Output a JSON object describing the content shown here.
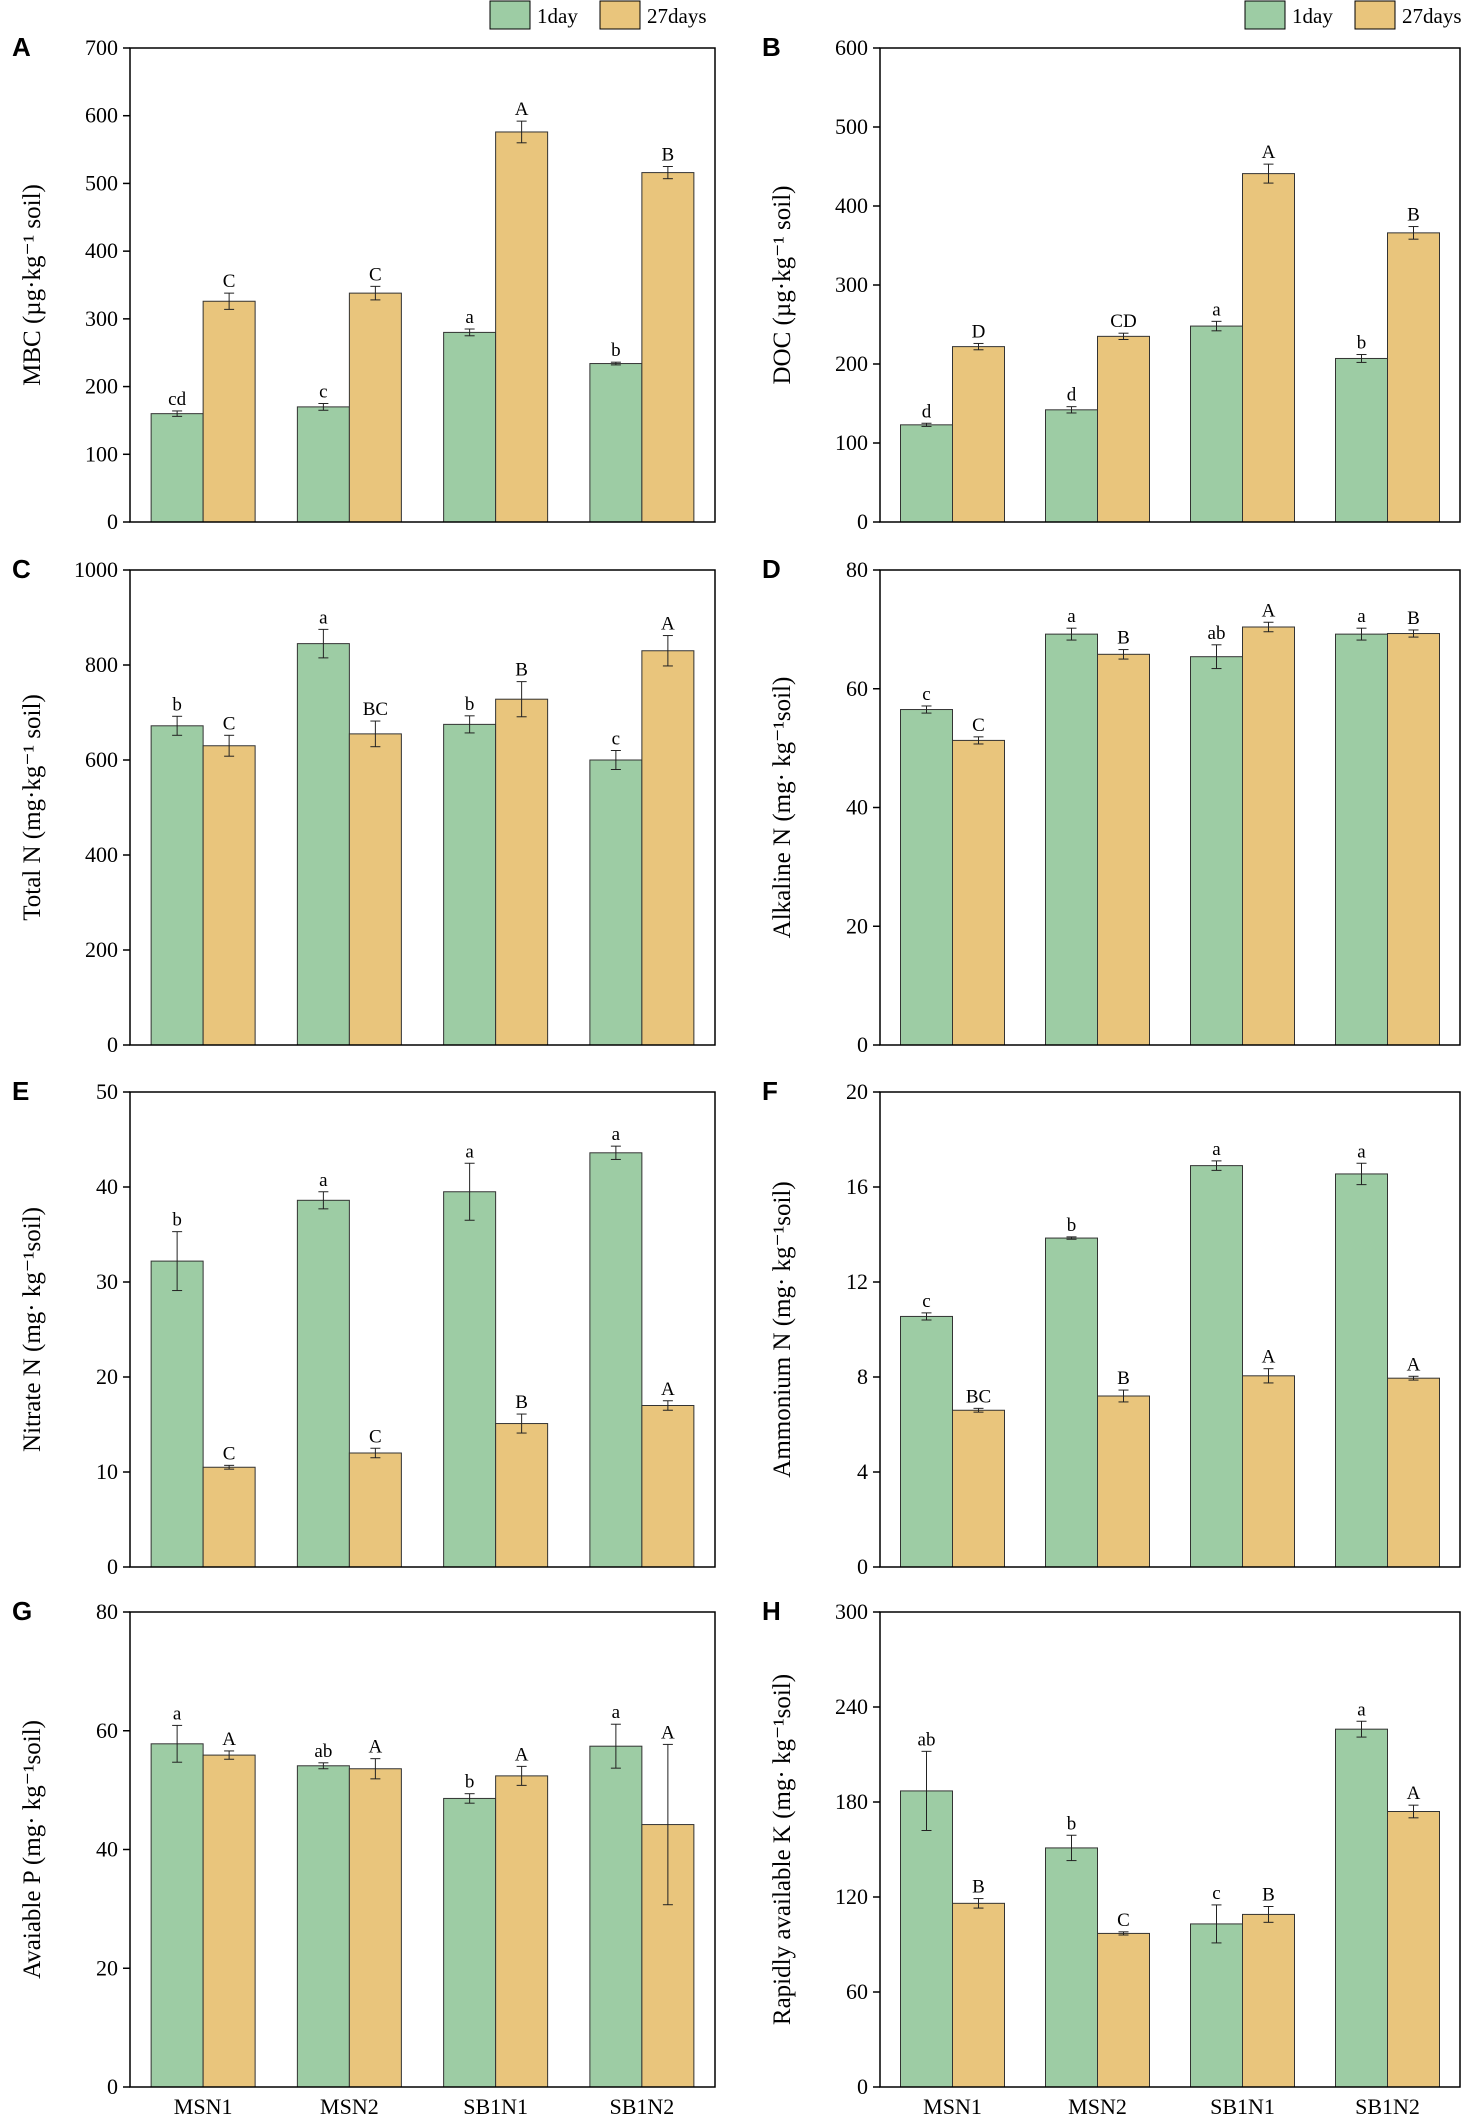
{
  "legend": {
    "series": [
      "1day",
      "27days"
    ],
    "colors": [
      "#9dcca4",
      "#e9c57c"
    ],
    "placement": "top-right"
  },
  "chart_data": [
    {
      "panel": "A",
      "type": "bar",
      "categories": [
        "MSN1",
        "MSN2",
        "SB1N1",
        "SB1N2"
      ],
      "ylabel": "MBC (µg·kg⁻¹ soil)",
      "ylim": [
        0,
        700
      ],
      "yticks": [
        0,
        100,
        200,
        300,
        400,
        500,
        600,
        700
      ],
      "series": [
        {
          "name": "1day",
          "values": [
            160,
            170,
            280,
            234
          ],
          "errors": [
            4,
            5,
            5,
            2
          ],
          "labels": [
            "cd",
            "c",
            "a",
            "b"
          ]
        },
        {
          "name": "27days",
          "values": [
            326,
            338,
            576,
            516
          ],
          "errors": [
            12,
            10,
            16,
            9
          ],
          "labels": [
            "C",
            "C",
            "A",
            "B"
          ]
        }
      ]
    },
    {
      "panel": "B",
      "type": "bar",
      "categories": [
        "MSN1",
        "MSN2",
        "SB1N1",
        "SB1N2"
      ],
      "ylabel": "DOC (µg·kg⁻¹ soil)",
      "ylim": [
        0,
        600
      ],
      "yticks": [
        0,
        100,
        200,
        300,
        400,
        500,
        600
      ],
      "series": [
        {
          "name": "1day",
          "values": [
            123,
            142,
            248,
            207
          ],
          "errors": [
            2,
            4,
            6,
            5
          ],
          "labels": [
            "d",
            "d",
            "a",
            "b"
          ]
        },
        {
          "name": "27days",
          "values": [
            222,
            235,
            441,
            366
          ],
          "errors": [
            4,
            4,
            12,
            8
          ],
          "labels": [
            "D",
            "CD",
            "A",
            "B"
          ]
        }
      ]
    },
    {
      "panel": "C",
      "type": "bar",
      "categories": [
        "MSN1",
        "MSN2",
        "SB1N1",
        "SB1N2"
      ],
      "ylabel": "Total N (mg·kg⁻¹ soil)",
      "ylim": [
        0,
        1000
      ],
      "yticks": [
        0,
        200,
        400,
        600,
        800,
        1000
      ],
      "series": [
        {
          "name": "1day",
          "values": [
            672,
            845,
            675,
            600
          ],
          "errors": [
            20,
            30,
            18,
            20
          ],
          "labels": [
            "b",
            "a",
            "b",
            "c"
          ]
        },
        {
          "name": "27days",
          "values": [
            630,
            655,
            728,
            830
          ],
          "errors": [
            22,
            27,
            37,
            32
          ],
          "labels": [
            "C",
            "BC",
            "B",
            "A"
          ]
        }
      ]
    },
    {
      "panel": "D",
      "type": "bar",
      "categories": [
        "MSN1",
        "MSN2",
        "SB1N1",
        "SB1N2"
      ],
      "ylabel": "Alkaline N (mg· kg⁻¹soil)",
      "ylim": [
        0,
        80
      ],
      "yticks": [
        0,
        20,
        40,
        60,
        80
      ],
      "series": [
        {
          "name": "1day",
          "values": [
            56.5,
            69.2,
            65.4,
            69.2
          ],
          "errors": [
            0.6,
            1.0,
            2.0,
            1.0
          ],
          "labels": [
            "c",
            "a",
            "ab",
            "a"
          ]
        },
        {
          "name": "27days",
          "values": [
            51.3,
            65.8,
            70.4,
            69.3
          ],
          "errors": [
            0.6,
            0.8,
            0.8,
            0.6
          ],
          "labels": [
            "C",
            "B",
            "A",
            "B"
          ]
        }
      ]
    },
    {
      "panel": "E",
      "type": "bar",
      "categories": [
        "MSN1",
        "MSN2",
        "SB1N1",
        "SB1N2"
      ],
      "ylabel": "Nitrate N (mg· kg⁻¹soil)",
      "ylim": [
        0,
        50
      ],
      "yticks": [
        0,
        10,
        20,
        30,
        40,
        50
      ],
      "series": [
        {
          "name": "1day",
          "values": [
            32.2,
            38.6,
            39.5,
            43.6
          ],
          "errors": [
            3.1,
            0.9,
            3.0,
            0.7
          ],
          "labels": [
            "b",
            "a",
            "a",
            "a"
          ]
        },
        {
          "name": "27days",
          "values": [
            10.5,
            12.0,
            15.1,
            17.0
          ],
          "errors": [
            0.2,
            0.5,
            1.0,
            0.5
          ],
          "labels": [
            "C",
            "C",
            "B",
            "A"
          ]
        }
      ]
    },
    {
      "panel": "F",
      "type": "bar",
      "categories": [
        "MSN1",
        "MSN2",
        "SB1N1",
        "SB1N2"
      ],
      "ylabel": "Ammonium N (mg· kg⁻¹soil)",
      "ylim": [
        0,
        20
      ],
      "yticks": [
        0,
        4,
        8,
        12,
        16,
        20
      ],
      "series": [
        {
          "name": "1day",
          "values": [
            10.55,
            13.85,
            16.9,
            16.55
          ],
          "errors": [
            0.15,
            0.05,
            0.2,
            0.45
          ],
          "labels": [
            "c",
            "b",
            "a",
            "a"
          ]
        },
        {
          "name": "27days",
          "values": [
            6.6,
            7.2,
            8.05,
            7.95
          ],
          "errors": [
            0.08,
            0.25,
            0.3,
            0.08
          ],
          "labels": [
            "BC",
            "B",
            "A",
            "A"
          ]
        }
      ]
    },
    {
      "panel": "G",
      "type": "bar",
      "categories": [
        "MSN1",
        "MSN2",
        "SB1N1",
        "SB1N2"
      ],
      "ylabel": "Avaiable P  (mg· kg⁻¹soil)",
      "ylim": [
        0,
        80
      ],
      "yticks": [
        0,
        20,
        40,
        60,
        80
      ],
      "series": [
        {
          "name": "1day",
          "values": [
            57.8,
            54.1,
            48.6,
            57.4
          ],
          "errors": [
            3.1,
            0.5,
            0.8,
            3.7
          ],
          "labels": [
            "a",
            "ab",
            "b",
            "a"
          ]
        },
        {
          "name": "27days",
          "values": [
            55.9,
            53.6,
            52.4,
            44.2
          ],
          "errors": [
            0.7,
            1.7,
            1.6,
            13.5
          ],
          "labels": [
            "A",
            "A",
            "A",
            "A"
          ]
        }
      ]
    },
    {
      "panel": "H",
      "type": "bar",
      "categories": [
        "MSN1",
        "MSN2",
        "SB1N1",
        "SB1N2"
      ],
      "ylabel": "Rapidly available K (mg· kg⁻¹soil)",
      "ylim": [
        0,
        300
      ],
      "yticks": [
        0,
        60,
        120,
        180,
        240,
        300
      ],
      "series": [
        {
          "name": "1day",
          "values": [
            187,
            151,
            103,
            226
          ],
          "errors": [
            25,
            8,
            12,
            5
          ],
          "labels": [
            "ab",
            "b",
            "c",
            "a"
          ]
        },
        {
          "name": "27days",
          "values": [
            116,
            97,
            109,
            174
          ],
          "errors": [
            3,
            1,
            5,
            4
          ],
          "labels": [
            "B",
            "C",
            "B",
            "A"
          ]
        }
      ]
    }
  ]
}
